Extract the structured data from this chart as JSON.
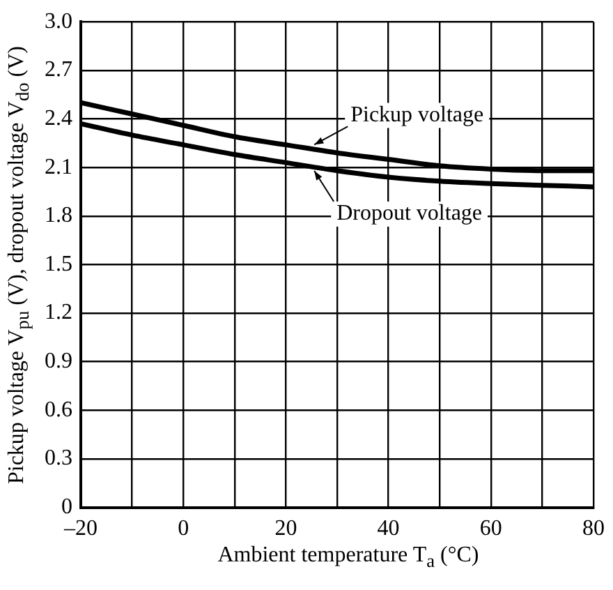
{
  "chart_data": {
    "type": "line",
    "xlabel": "Ambient temperature T$_{a}$ (°C)",
    "ylabel": "Pickup voltage V$_{pu}$ (V), dropout voltage V$_{do}$ (V)",
    "x": [
      -20,
      -10,
      0,
      10,
      20,
      30,
      40,
      50,
      60,
      70,
      80
    ],
    "series": [
      {
        "name": "Pickup voltage",
        "color": "#000000",
        "values": [
          2.5,
          2.43,
          2.36,
          2.29,
          2.24,
          2.19,
          2.15,
          2.11,
          2.09,
          2.08,
          2.08
        ]
      },
      {
        "name": "Dropout voltage",
        "color": "#000000",
        "values": [
          2.37,
          2.3,
          2.24,
          2.18,
          2.13,
          2.08,
          2.04,
          2.015,
          2.0,
          1.99,
          1.98
        ]
      }
    ],
    "xlim": [
      -20,
      80
    ],
    "xticks": [
      {
        "value": -20,
        "label": "–20"
      },
      {
        "value": -10,
        "label": null
      },
      0,
      {
        "value": 10,
        "label": null
      },
      20,
      {
        "value": 30,
        "label": null
      },
      40,
      {
        "value": 50,
        "label": null
      },
      60,
      {
        "value": 70,
        "label": null
      },
      80
    ],
    "ylim": [
      0,
      3.0
    ],
    "yticks": [
      {
        "value": 0,
        "label": "0"
      },
      0.3,
      0.6,
      0.9,
      1.2,
      1.5,
      1.8,
      2.1,
      2.4,
      2.7,
      {
        "value": 3.0,
        "label": "3.0"
      }
    ],
    "grid": true,
    "legend": "right",
    "marker": "none",
    "line_style": "solid"
  }
}
